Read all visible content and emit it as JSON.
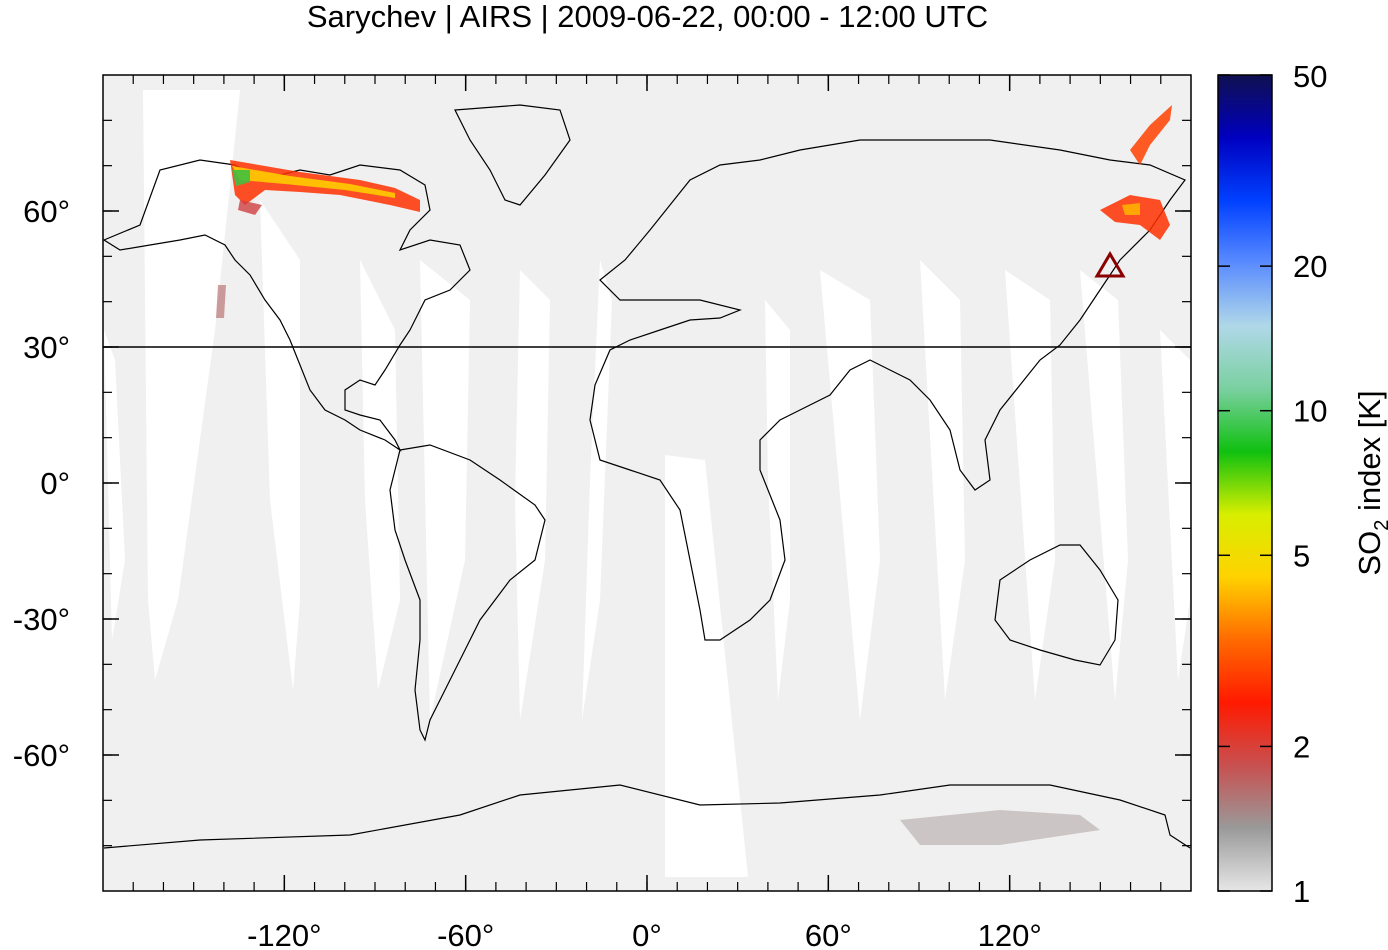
{
  "map": {
    "title": "Sarychev | AIRS | 2009-06-22, 00:00 - 12:00 UTC",
    "lon_range": [
      -180,
      180
    ],
    "lat_range": [
      -90,
      90
    ],
    "grid": false,
    "reference_latitude": 30,
    "x_ticks": [
      {
        "value": -120,
        "label": "-120°"
      },
      {
        "value": -60,
        "label": "-60°"
      },
      {
        "value": 0,
        "label": "0°"
      },
      {
        "value": 60,
        "label": "60°"
      },
      {
        "value": 120,
        "label": "120°"
      }
    ],
    "y_ticks": [
      {
        "value": 60,
        "label": "60°"
      },
      {
        "value": 30,
        "label": "30°"
      },
      {
        "value": 0,
        "label": "0°"
      },
      {
        "value": -30,
        "label": "-30°"
      },
      {
        "value": -60,
        "label": "-60°"
      }
    ],
    "volcano": {
      "name": "Sarychev",
      "lon": 153.2,
      "lat": 48.1,
      "marker": "triangle-icon",
      "color": "#8b0000"
    },
    "background_color": "#f0f0f0",
    "land_outline_color": "#000000"
  },
  "colorbar": {
    "label_main": "SO",
    "label_sub": "2",
    "label_rest": " index [K]",
    "scale": "log",
    "range": [
      1,
      50
    ],
    "ticks": [
      {
        "value": 50,
        "label": "50"
      },
      {
        "value": 20,
        "label": "20"
      },
      {
        "value": 10,
        "label": "10"
      },
      {
        "value": 5,
        "label": "5"
      },
      {
        "value": 2,
        "label": "2"
      },
      {
        "value": 1,
        "label": "1"
      }
    ],
    "colors": [
      "#e6e6e6",
      "#9a9a9a",
      "#c85050",
      "#ff1a00",
      "#ff6a00",
      "#ffd200",
      "#d8ee00",
      "#10c010",
      "#7ad0a0",
      "#b0d8e8",
      "#5a8cff",
      "#0040ff",
      "#0000c0",
      "#101050"
    ]
  }
}
